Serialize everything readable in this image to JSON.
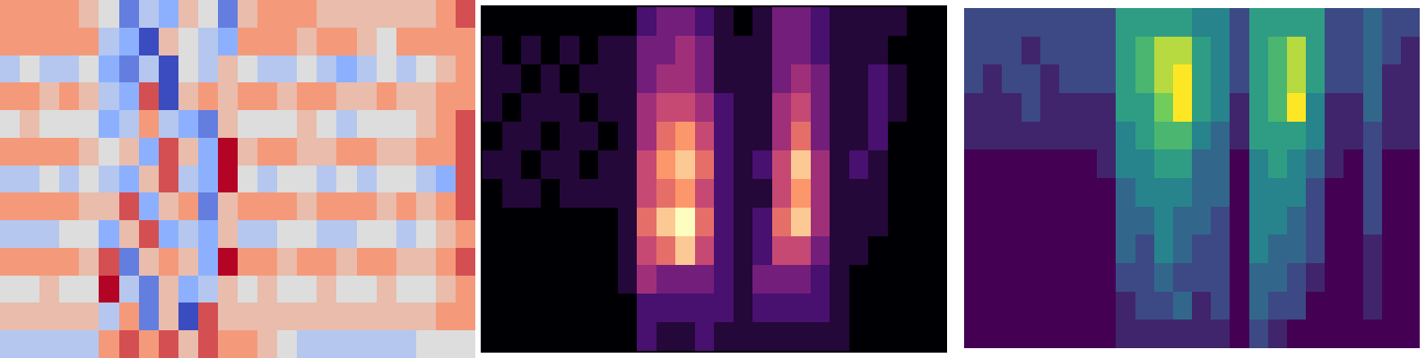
{
  "chart_data": [
    {
      "type": "heatmap",
      "color": "coolwarm",
      "tick_labels": false,
      "cells": [
        [
          2,
          2,
          2,
          2,
          1,
          0,
          -3,
          -1,
          -2,
          1,
          0,
          -3,
          1,
          2,
          2,
          2,
          1,
          1,
          1,
          1,
          1,
          1,
          2,
          3
        ],
        [
          2,
          2,
          2,
          2,
          2,
          -1,
          -2,
          -4,
          1,
          0,
          -1,
          -2,
          2,
          2,
          2,
          1,
          2,
          2,
          1,
          0,
          2,
          2,
          2,
          2
        ],
        [
          -1,
          0,
          -1,
          -1,
          0,
          -2,
          -3,
          -1,
          -4,
          0,
          -1,
          1,
          0,
          -1,
          -1,
          0,
          -1,
          -2,
          -1,
          0,
          -1,
          0,
          1,
          2
        ],
        [
          2,
          2,
          1,
          2,
          1,
          -1,
          -2,
          3,
          -4,
          1,
          2,
          1,
          2,
          2,
          1,
          2,
          2,
          1,
          1,
          2,
          1,
          1,
          2,
          2
        ],
        [
          0,
          1,
          0,
          0,
          0,
          -2,
          -1,
          2,
          -1,
          -2,
          -3,
          1,
          0,
          0,
          0,
          1,
          0,
          -1,
          0,
          0,
          0,
          1,
          2,
          3
        ],
        [
          2,
          2,
          2,
          2,
          1,
          0,
          1,
          -2,
          3,
          1,
          -2,
          4,
          1,
          2,
          2,
          1,
          1,
          2,
          2,
          1,
          1,
          2,
          2,
          3
        ],
        [
          -1,
          -1,
          0,
          -1,
          0,
          -1,
          -2,
          1,
          3,
          -1,
          -2,
          4,
          0,
          -1,
          0,
          0,
          -1,
          0,
          -1,
          0,
          0,
          -1,
          -2,
          3
        ],
        [
          2,
          2,
          2,
          2,
          1,
          1,
          3,
          -2,
          1,
          2,
          -3,
          1,
          2,
          2,
          2,
          1,
          2,
          2,
          2,
          1,
          2,
          1,
          2,
          3
        ],
        [
          -1,
          -1,
          -1,
          0,
          0,
          -2,
          1,
          3,
          -2,
          -1,
          -2,
          1,
          -1,
          -1,
          0,
          0,
          -1,
          -1,
          0,
          0,
          -1,
          0,
          1,
          2
        ],
        [
          2,
          2,
          2,
          2,
          1,
          3,
          -3,
          1,
          2,
          1,
          -2,
          4,
          2,
          2,
          1,
          2,
          2,
          1,
          2,
          2,
          1,
          1,
          2,
          3
        ],
        [
          0,
          0,
          1,
          0,
          0,
          4,
          -1,
          -3,
          1,
          -2,
          -1,
          1,
          0,
          1,
          0,
          0,
          1,
          0,
          0,
          1,
          0,
          0,
          1,
          2
        ],
        [
          1,
          1,
          1,
          1,
          1,
          -1,
          2,
          -3,
          1,
          -4,
          3,
          1,
          1,
          1,
          1,
          1,
          1,
          1,
          1,
          1,
          1,
          1,
          2,
          2
        ],
        [
          -1,
          -1,
          -1,
          -1,
          -1,
          2,
          3,
          2,
          3,
          1,
          3,
          2,
          2,
          1,
          0,
          -1,
          -1,
          -1,
          -1,
          -1,
          -1,
          0,
          0,
          0
        ]
      ]
    },
    {
      "type": "heatmap",
      "color": "magma",
      "tick_labels": false,
      "cells": [
        [
          0,
          0,
          0,
          0,
          0,
          0,
          0,
          0,
          2,
          3,
          3,
          2,
          1,
          0,
          1,
          3,
          3,
          2,
          1,
          1,
          1,
          1,
          0,
          0
        ],
        [
          1,
          0,
          1,
          0,
          1,
          0,
          1,
          1,
          3,
          3,
          4,
          3,
          1,
          1,
          1,
          3,
          3,
          2,
          1,
          1,
          1,
          0,
          0,
          0
        ],
        [
          1,
          1,
          0,
          1,
          0,
          1,
          1,
          1,
          3,
          4,
          4,
          3,
          1,
          1,
          1,
          3,
          4,
          3,
          1,
          1,
          2,
          1,
          0,
          0
        ],
        [
          1,
          0,
          1,
          1,
          1,
          0,
          1,
          1,
          4,
          5,
          5,
          4,
          2,
          1,
          1,
          4,
          5,
          3,
          1,
          1,
          2,
          1,
          0,
          0
        ],
        [
          0,
          1,
          1,
          0,
          1,
          1,
          0,
          1,
          4,
          6,
          7,
          5,
          2,
          1,
          1,
          4,
          6,
          3,
          1,
          1,
          2,
          0,
          0,
          0
        ],
        [
          1,
          1,
          0,
          1,
          1,
          0,
          1,
          1,
          5,
          7,
          8,
          6,
          2,
          1,
          2,
          5,
          8,
          4,
          1,
          2,
          1,
          0,
          0,
          0
        ],
        [
          0,
          1,
          1,
          0,
          1,
          1,
          1,
          1,
          5,
          6,
          7,
          5,
          2,
          1,
          1,
          5,
          7,
          4,
          1,
          1,
          1,
          0,
          0,
          0
        ],
        [
          0,
          0,
          0,
          0,
          0,
          0,
          0,
          1,
          6,
          8,
          9,
          6,
          2,
          1,
          2,
          6,
          8,
          4,
          1,
          1,
          1,
          0,
          0,
          0
        ],
        [
          0,
          0,
          0,
          0,
          0,
          0,
          0,
          1,
          5,
          6,
          8,
          5,
          2,
          1,
          2,
          5,
          5,
          3,
          1,
          1,
          0,
          0,
          0,
          0
        ],
        [
          0,
          0,
          0,
          0,
          0,
          0,
          0,
          1,
          4,
          3,
          3,
          3,
          2,
          1,
          3,
          3,
          3,
          2,
          1,
          0,
          0,
          0,
          0,
          0
        ],
        [
          0,
          0,
          0,
          0,
          0,
          0,
          0,
          0,
          2,
          2,
          2,
          2,
          2,
          1,
          2,
          2,
          2,
          2,
          1,
          0,
          0,
          0,
          0,
          0
        ],
        [
          0,
          0,
          0,
          0,
          0,
          0,
          0,
          0,
          2,
          1,
          1,
          2,
          1,
          1,
          1,
          1,
          1,
          1,
          1,
          0,
          0,
          0,
          0,
          0
        ]
      ]
    },
    {
      "type": "heatmap",
      "color": "viridis",
      "tick_labels": false,
      "cells": [
        [
          2,
          2,
          2,
          2,
          2,
          2,
          2,
          2,
          5,
          5,
          5,
          5,
          4,
          4,
          2,
          5,
          5,
          5,
          5,
          2,
          2,
          3,
          2,
          2
        ],
        [
          2,
          2,
          2,
          1,
          2,
          2,
          2,
          2,
          5,
          6,
          8,
          8,
          5,
          4,
          2,
          5,
          6,
          8,
          5,
          2,
          2,
          3,
          2,
          1
        ],
        [
          2,
          1,
          2,
          2,
          1,
          2,
          2,
          2,
          5,
          6,
          8,
          9,
          5,
          4,
          2,
          5,
          6,
          8,
          5,
          2,
          2,
          3,
          1,
          1
        ],
        [
          1,
          1,
          1,
          2,
          1,
          1,
          1,
          1,
          5,
          5,
          7,
          9,
          5,
          4,
          1,
          5,
          6,
          9,
          4,
          1,
          1,
          3,
          1,
          1
        ],
        [
          1,
          1,
          1,
          1,
          1,
          1,
          1,
          1,
          4,
          5,
          6,
          6,
          4,
          3,
          1,
          5,
          5,
          5,
          4,
          1,
          1,
          2,
          1,
          1
        ],
        [
          0,
          0,
          0,
          0,
          0,
          0,
          0,
          1,
          4,
          4,
          5,
          5,
          3,
          3,
          0,
          4,
          5,
          4,
          3,
          1,
          0,
          2,
          0,
          0
        ],
        [
          0,
          0,
          0,
          0,
          0,
          0,
          0,
          0,
          3,
          4,
          4,
          4,
          3,
          3,
          0,
          4,
          4,
          4,
          2,
          0,
          0,
          2,
          0,
          0
        ],
        [
          0,
          0,
          0,
          0,
          0,
          0,
          0,
          0,
          3,
          3,
          4,
          3,
          3,
          2,
          0,
          4,
          4,
          3,
          2,
          0,
          0,
          2,
          0,
          0
        ],
        [
          0,
          0,
          0,
          0,
          0,
          0,
          0,
          0,
          3,
          2,
          4,
          3,
          2,
          2,
          0,
          4,
          3,
          3,
          2,
          0,
          0,
          1,
          0,
          0
        ],
        [
          0,
          0,
          0,
          0,
          0,
          0,
          0,
          0,
          2,
          2,
          3,
          2,
          2,
          2,
          0,
          3,
          3,
          2,
          1,
          0,
          0,
          1,
          0,
          0
        ],
        [
          0,
          0,
          0,
          0,
          0,
          0,
          0,
          0,
          1,
          2,
          2,
          3,
          1,
          2,
          0,
          3,
          2,
          2,
          0,
          0,
          0,
          1,
          0,
          0
        ],
        [
          0,
          0,
          0,
          0,
          0,
          0,
          0,
          0,
          1,
          1,
          1,
          1,
          1,
          1,
          0,
          2,
          1,
          0,
          0,
          0,
          0,
          0,
          0,
          0
        ]
      ]
    }
  ]
}
